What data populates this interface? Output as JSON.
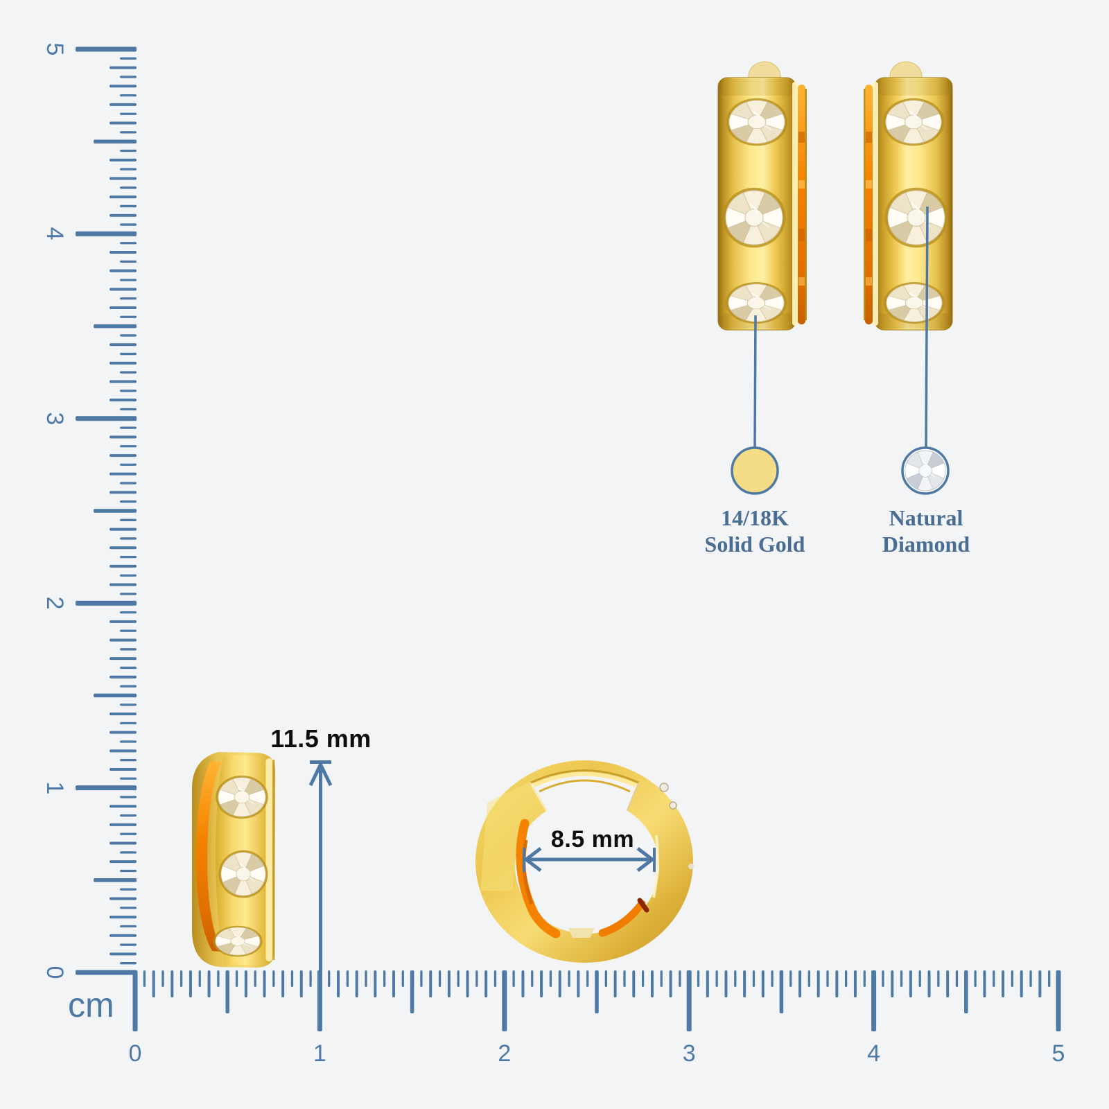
{
  "colors": {
    "background": "#f3f4f6",
    "ruler": "#4d79a4",
    "callout_text": "#4a6d94",
    "dimension_text": "#0e0e0e",
    "gold_swatch": "#f5dc87",
    "gold_main": "#f2ce57",
    "orange_inner": "#f58300"
  },
  "rulers": {
    "unit_label": "cm",
    "horizontal_labels": [
      "0",
      "1",
      "2",
      "3",
      "4",
      "5"
    ],
    "vertical_labels": [
      "0",
      "1",
      "2",
      "3",
      "4",
      "5"
    ]
  },
  "measurements": {
    "height": "11.5 mm",
    "inner_diameter": "8.5 mm"
  },
  "callouts": {
    "gold": {
      "line1": "14/18K",
      "line2": "Solid Gold",
      "icon": "gold-circle-swatch"
    },
    "diamond": {
      "line1": "Natural",
      "line2": "Diamond",
      "icon": "diamond-stone-icon"
    }
  }
}
